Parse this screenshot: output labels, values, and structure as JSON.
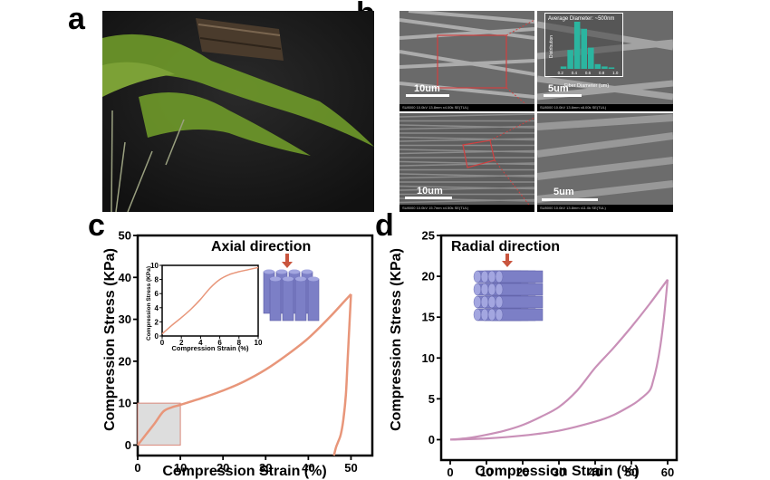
{
  "panels": {
    "a": {
      "label": "a",
      "description": "Photograph of asparagus fern branch with a piece of bark on dark background"
    },
    "b": {
      "label": "b",
      "sem_images": [
        {
          "scale": "10um",
          "info": "SU8000 10.0kV 13.8mm x4.00k SE(TUL)",
          "scale_right": "10.0um"
        },
        {
          "scale": "5um",
          "info": "SU8000 10.0kV 13.6mm x8.00k SE(TUL)",
          "scale_right": ""
        },
        {
          "scale": "10um",
          "info": "SU8000 10.0kV 15.7mm x4.50k SE(TUL)",
          "scale_right": "10.0um"
        },
        {
          "scale": "5um",
          "info": "SU8000 10.0kV 13.8mm x11.0k SE(TUL)",
          "scale_right": "5.00um"
        }
      ],
      "histogram": {
        "title": "Average Diameter: ~500nm",
        "ylabel": "Distribution",
        "xlabel": "Fiber Diameter (um)",
        "xticks": [
          "0.2",
          "0.4",
          "0.6",
          "0.8",
          "1.0"
        ],
        "bins": [
          0.25,
          0.35,
          0.45,
          0.55,
          0.65,
          0.75,
          0.85,
          0.95
        ],
        "counts": [
          0.05,
          0.4,
          1.0,
          0.85,
          0.45,
          0.1,
          0.05,
          0.03
        ],
        "color": "#2bb5a0"
      }
    },
    "c": {
      "label": "c",
      "annotation": "Axial direction"
    },
    "d": {
      "label": "d",
      "annotation": "Radial direction"
    }
  },
  "chart_data": [
    {
      "type": "line",
      "panel": "c",
      "xlabel": "Compression Strain (%)",
      "ylabel": "Compression Stress (KPa)",
      "xlim": [
        0,
        55
      ],
      "ylim": [
        -2.5,
        50
      ],
      "xticks": [
        0,
        10,
        20,
        30,
        40,
        50
      ],
      "yticks": [
        0,
        10,
        20,
        30,
        40,
        50
      ],
      "color": "#e8967a",
      "series": [
        {
          "name": "loading",
          "x": [
            0,
            2,
            4,
            6,
            8,
            10,
            15,
            20,
            25,
            30,
            35,
            40,
            45,
            48,
            50
          ],
          "y": [
            0,
            2.6,
            5.2,
            8.0,
            9.0,
            9.6,
            11.2,
            13.0,
            15.2,
            18.0,
            21.5,
            25.5,
            30.5,
            33.8,
            36
          ]
        },
        {
          "name": "unloading",
          "x": [
            50,
            49.6,
            49.2,
            48.8,
            48.2,
            47.6,
            47,
            46.5,
            46
          ],
          "y": [
            36,
            28,
            20,
            12,
            6,
            2.5,
            0.8,
            -0.5,
            -2.5
          ]
        }
      ],
      "highlight_box": {
        "x": [
          0,
          10
        ],
        "y": [
          0,
          10
        ]
      },
      "inset": {
        "xlabel": "Compression Strain (%)",
        "ylabel": "Compression Stress (KPa)",
        "xlim": [
          0,
          10
        ],
        "ylim": [
          0,
          10
        ],
        "xticks": [
          0,
          2,
          4,
          6,
          8,
          10
        ],
        "yticks": [
          0,
          2,
          4,
          6,
          8,
          10
        ],
        "x": [
          0,
          1,
          2,
          3,
          4,
          5,
          6,
          7,
          8,
          9,
          10
        ],
        "y": [
          0.3,
          1.5,
          2.6,
          3.8,
          5.2,
          6.8,
          8.0,
          8.7,
          9.1,
          9.4,
          9.7
        ]
      }
    },
    {
      "type": "line",
      "panel": "d",
      "xlabel": "Compression Strain (%)",
      "ylabel": "Compression Stress (KPa)",
      "xlim": [
        -2.5,
        62.5
      ],
      "ylim": [
        -2.5,
        25
      ],
      "xticks": [
        0,
        10,
        20,
        30,
        40,
        50,
        60
      ],
      "yticks": [
        0,
        5,
        10,
        15,
        20,
        25
      ],
      "color": "#c990b8",
      "series": [
        {
          "name": "loading",
          "x": [
            0,
            5,
            10,
            15,
            20,
            25,
            30,
            35,
            40,
            45,
            50,
            55,
            60
          ],
          "y": [
            0,
            0.2,
            0.6,
            1.1,
            1.8,
            2.8,
            4.0,
            6.0,
            8.8,
            11.2,
            13.8,
            16.6,
            19.6
          ]
        },
        {
          "name": "unloading",
          "x": [
            60,
            59,
            58,
            57,
            56,
            55,
            52,
            50,
            45,
            40,
            30,
            20,
            10,
            0
          ],
          "y": [
            19.6,
            15,
            11.5,
            9,
            7.2,
            6.0,
            4.8,
            4.2,
            3.0,
            2.2,
            1.1,
            0.5,
            0.15,
            0
          ]
        }
      ]
    }
  ]
}
